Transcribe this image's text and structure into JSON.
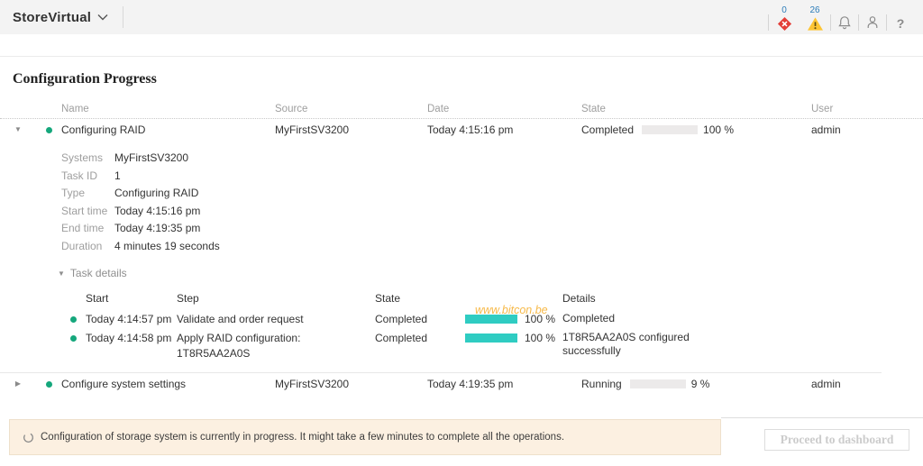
{
  "header": {
    "app_title": "StoreVirtual",
    "critical_count": "0",
    "warning_count": "26"
  },
  "page": {
    "title": "Configuration Progress"
  },
  "table": {
    "columns": {
      "name": "Name",
      "source": "Source",
      "date": "Date",
      "state": "State",
      "user": "User"
    },
    "rows": [
      {
        "name": "Configuring RAID",
        "source": "MyFirstSV3200",
        "date": "Today 4:15:16 pm",
        "state": "Completed",
        "progress_label": "100 %",
        "progress_pct": 100,
        "user": "admin",
        "expanded": true,
        "details": {
          "fields": [
            {
              "label": "Systems",
              "value": "MyFirstSV3200"
            },
            {
              "label": "Task ID",
              "value": "1"
            },
            {
              "label": "Type",
              "value": "Configuring RAID"
            },
            {
              "label": "Start time",
              "value": "Today 4:15:16 pm"
            },
            {
              "label": "End time",
              "value": "Today 4:19:35 pm"
            },
            {
              "label": "Duration",
              "value": "4 minutes 19 seconds"
            }
          ],
          "task_details_label": "Task details",
          "steps_columns": {
            "start": "Start",
            "step": "Step",
            "state": "State",
            "details": "Details"
          },
          "steps": [
            {
              "start": "Today 4:14:57 pm",
              "step": "Validate and order request",
              "state": "Completed",
              "progress_label": "100 %",
              "progress_pct": 100,
              "details": "Completed"
            },
            {
              "start": "Today 4:14:58 pm",
              "step": "Apply RAID configuration: 1T8R5AA2A0S",
              "state": "Completed",
              "progress_label": "100 %",
              "progress_pct": 100,
              "details": "1T8R5AA2A0S configured successfully"
            }
          ]
        }
      },
      {
        "name": "Configure system settings",
        "source": "MyFirstSV3200",
        "date": "Today 4:19:35 pm",
        "state": "Running",
        "progress_label": "9 %",
        "progress_pct": 9,
        "user": "admin",
        "expanded": false
      }
    ]
  },
  "footer": {
    "banner_text": "Configuration of storage system is currently in progress. It might take a few minutes to complete all the operations.",
    "button_label": "Proceed to dashboard"
  },
  "watermark": "www.bitcon.be",
  "colors": {
    "accent_teal": "#2fccc2",
    "status_green": "#15a77c",
    "alert_red": "#e33e38",
    "alert_yellow": "#fdc533",
    "count_blue": "#2b7cb9",
    "banner_bg": "#fcf0e1"
  }
}
